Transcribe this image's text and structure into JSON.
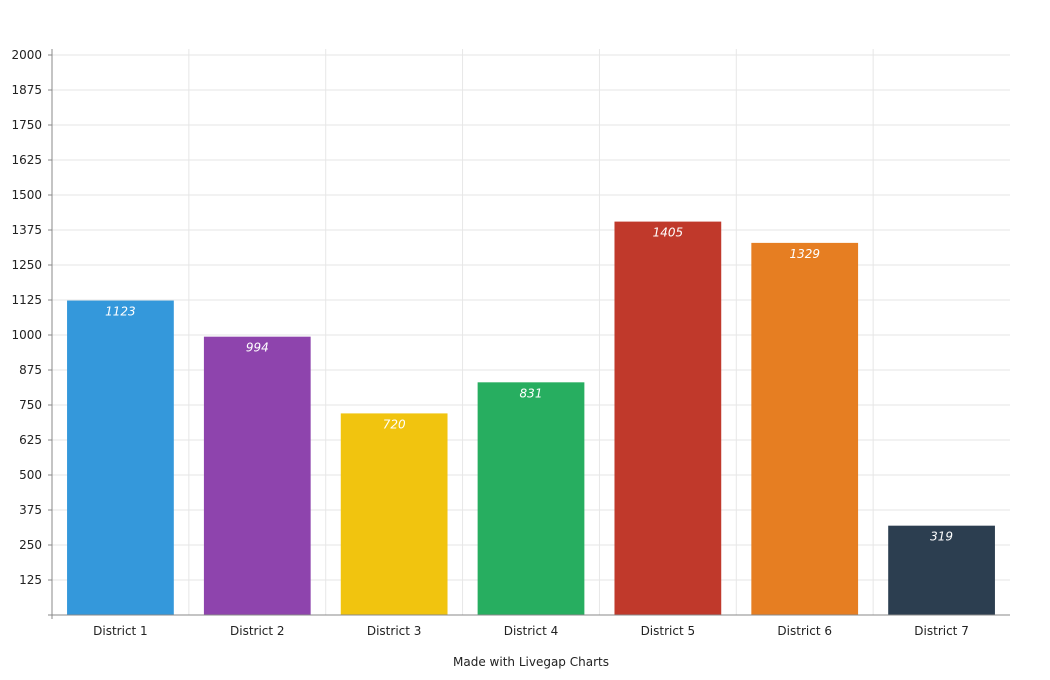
{
  "chart_data": {
    "type": "bar",
    "title": "",
    "xlabel": "",
    "ylabel": "",
    "categories": [
      "District 1",
      "District 2",
      "District 3",
      "District 4",
      "District 5",
      "District 6",
      "District 7"
    ],
    "values": [
      1123,
      994,
      720,
      831,
      1405,
      1329,
      319
    ],
    "colors": [
      "#3498db",
      "#8e44ad",
      "#f1c40f",
      "#27ae60",
      "#c0392b",
      "#e67e22",
      "#2c3e50"
    ],
    "ylim": [
      0,
      2000
    ],
    "yticks": [
      125,
      250,
      375,
      500,
      625,
      750,
      875,
      1000,
      1125,
      1250,
      1375,
      1500,
      1625,
      1750,
      1875,
      2000
    ],
    "grid": true,
    "data_labels": true
  },
  "credit": "Made with Livegap Charts"
}
